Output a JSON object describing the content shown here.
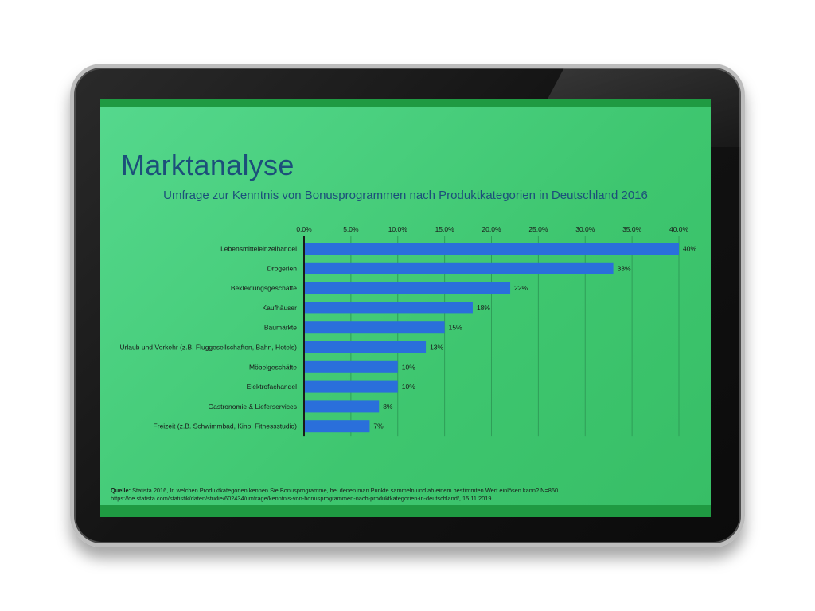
{
  "slide": {
    "title": "Marktanalyse",
    "source_label": "Quelle:",
    "source_text": " Statista 2016, In welchen Produktkategorien kennen Sie Bonusprogramme, bei denen man Punkte sammeln und ab einem bestimmten Wert einlösen kann? N=860",
    "source_url": "https://de.statista.com/statistik/daten/studie/602434/umfrage/kenntnis-von-bonusprogrammen-nach-produktkategorien-in-deutschland/, 15.11.2019"
  },
  "colors": {
    "bar": "#2a6fdb",
    "text": "#1c4f7a",
    "header_band": "#1f9a42",
    "screen": "#45cc78"
  },
  "chart_data": {
    "type": "bar",
    "orientation": "horizontal",
    "title": "Umfrage zur Kenntnis von Bonusprogrammen nach Produktkategorien in Deutschland 2016",
    "categories": [
      "Lebensmitteleinzelhandel",
      "Drogerien",
      "Bekleidungsgeschäfte",
      "Kaufhäuser",
      "Baumärkte",
      "Urlaub und Verkehr (z.B. Fluggesellschaften, Bahn, Hotels)",
      "Möbelgeschäfte",
      "Elektrofachandel",
      "Gastronomie & Lieferservices",
      "Freizeit (z.B. Schwimmbad, Kino, Fitnessstudio)"
    ],
    "values": [
      40,
      33,
      22,
      18,
      15,
      13,
      10,
      10,
      8,
      7
    ],
    "data_labels": [
      "40%",
      "33%",
      "22%",
      "18%",
      "15%",
      "13%",
      "10%",
      "10%",
      "8%",
      "7%"
    ],
    "xlim": [
      0,
      40
    ],
    "x_ticks": [
      0,
      5,
      10,
      15,
      20,
      25,
      30,
      35,
      40
    ],
    "x_tick_labels": [
      "0,0%",
      "5,0%",
      "10,0%",
      "15,0%",
      "20,0%",
      "25,0%",
      "30,0%",
      "35,0%",
      "40,0%"
    ],
    "x_axis_position": "top",
    "grid": true,
    "legend": "none"
  }
}
